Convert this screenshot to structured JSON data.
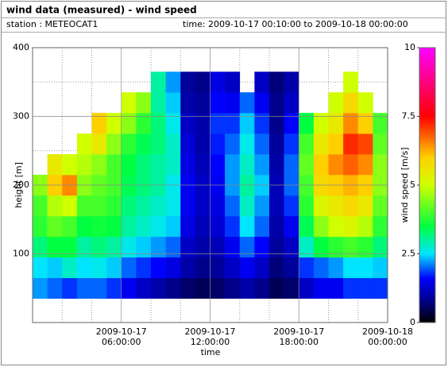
{
  "header": {
    "title": "wind data (measured) - wind speed",
    "station": "station : METEOCAT1",
    "time": "time: 2009-10-17 00:10:00 to 2009-10-18 00:00:00"
  },
  "chart_data": {
    "type": "heatmap",
    "xlabel": "time",
    "ylabel": "height [m]",
    "colorbar_label": "wind speed [m/s]",
    "xlim": [
      0,
      24
    ],
    "ylim": [
      0,
      400
    ],
    "xticks": [
      {
        "value": 6,
        "label": "2009-10-17 06:00:00"
      },
      {
        "value": 12,
        "label": "2009-10-17 12:00:00"
      },
      {
        "value": 18,
        "label": "2009-10-17 18:00:00"
      },
      {
        "value": 24,
        "label": "2009-10-18 00:00:00"
      }
    ],
    "yticks": [
      100,
      200,
      300,
      400
    ],
    "xminorticks": [
      2,
      4,
      8,
      10,
      14,
      16,
      20,
      22
    ],
    "yminorticks": [
      50,
      150,
      250,
      350
    ],
    "grid": true,
    "clim": [
      0,
      10
    ],
    "cticks": [
      0,
      2.5,
      5,
      7.5,
      10
    ],
    "colorscale": [
      [
        0,
        "#000000"
      ],
      [
        0.8,
        "#00008b"
      ],
      [
        1.6,
        "#0000ff"
      ],
      [
        2.5,
        "#00e5ff"
      ],
      [
        3.5,
        "#00ff40"
      ],
      [
        5,
        "#d0ff00"
      ],
      [
        6,
        "#ffd000"
      ],
      [
        6.8,
        "#ff6000"
      ],
      [
        7.5,
        "#ff0000"
      ],
      [
        10,
        "#ff00ff"
      ]
    ],
    "xbins": [
      0,
      1,
      2,
      3,
      4,
      5,
      6,
      7,
      8,
      9,
      10,
      11,
      12,
      13,
      14,
      15,
      16,
      17,
      18,
      19,
      20,
      21,
      22,
      23,
      24
    ],
    "ybins": [
      35,
      65,
      95,
      125,
      155,
      185,
      215,
      245,
      275,
      305,
      335,
      365
    ],
    "values": [
      [
        2.2,
        2.0,
        1.8,
        2.0,
        2.0,
        1.8,
        1.5,
        1.2,
        1.0,
        0.8,
        0.6,
        0.5,
        0.6,
        0.8,
        1.0,
        0.8,
        0.5,
        0.6,
        1.2,
        1.5,
        1.5,
        1.8,
        1.8,
        1.8
      ],
      [
        2.5,
        2.4,
        2.8,
        2.5,
        2.6,
        2.4,
        2.0,
        1.8,
        1.6,
        1.4,
        1.0,
        0.8,
        0.9,
        1.2,
        1.5,
        1.2,
        0.7,
        0.9,
        1.8,
        2.0,
        2.2,
        2.5,
        2.5,
        2.4
      ],
      [
        3.2,
        3.5,
        3.5,
        3.0,
        3.2,
        3.0,
        2.6,
        2.4,
        2.2,
        2.0,
        1.2,
        1.0,
        1.1,
        1.5,
        2.0,
        1.6,
        0.9,
        1.2,
        2.8,
        3.5,
        3.8,
        4.0,
        3.8,
        3.2
      ],
      [
        3.8,
        4.2,
        4.0,
        3.5,
        3.6,
        3.5,
        3.0,
        2.8,
        2.6,
        2.4,
        1.4,
        1.1,
        1.3,
        1.8,
        2.5,
        2.0,
        1.0,
        1.5,
        3.4,
        4.5,
        5.0,
        5.2,
        4.8,
        3.8
      ],
      [
        4.0,
        4.8,
        5.0,
        4.0,
        4.0,
        3.8,
        3.2,
        3.0,
        2.8,
        2.6,
        1.5,
        1.2,
        1.4,
        2.0,
        2.8,
        2.2,
        1.1,
        1.8,
        3.8,
        5.2,
        5.5,
        5.8,
        5.5,
        4.2
      ],
      [
        4.5,
        6.0,
        6.5,
        4.5,
        4.2,
        4.0,
        3.4,
        3.2,
        3.0,
        2.6,
        1.5,
        1.2,
        1.5,
        2.2,
        3.0,
        2.4,
        1.1,
        2.0,
        4.0,
        5.8,
        6.0,
        6.2,
        6.0,
        4.5
      ],
      [
        null,
        5.5,
        5.0,
        4.8,
        4.5,
        4.0,
        3.5,
        3.2,
        3.0,
        2.8,
        1.4,
        1.1,
        1.6,
        2.2,
        2.8,
        2.2,
        1.0,
        2.0,
        4.2,
        6.0,
        6.5,
        6.8,
        6.5,
        4.5
      ],
      [
        null,
        null,
        null,
        5.0,
        5.5,
        4.5,
        3.8,
        3.4,
        3.2,
        2.8,
        1.3,
        1.0,
        1.7,
        2.0,
        2.6,
        2.0,
        0.9,
        1.8,
        4.0,
        5.5,
        6.0,
        7.2,
        7.0,
        4.2
      ],
      [
        null,
        null,
        null,
        null,
        6.0,
        5.0,
        4.5,
        3.8,
        3.2,
        2.6,
        1.2,
        1.0,
        1.8,
        1.8,
        2.4,
        1.8,
        0.8,
        1.6,
        3.5,
        5.0,
        5.5,
        6.5,
        6.0,
        4.0
      ],
      [
        null,
        null,
        null,
        null,
        null,
        null,
        5.0,
        4.5,
        3.0,
        2.4,
        1.0,
        0.9,
        1.6,
        1.5,
        2.0,
        1.5,
        0.8,
        1.2,
        null,
        null,
        5.0,
        5.8,
        5.0,
        null
      ],
      [
        null,
        null,
        null,
        null,
        null,
        null,
        null,
        null,
        3.0,
        2.2,
        0.9,
        0.8,
        1.4,
        1.2,
        null,
        1.2,
        0.7,
        1.0,
        null,
        null,
        null,
        5.0,
        null,
        null
      ]
    ]
  }
}
